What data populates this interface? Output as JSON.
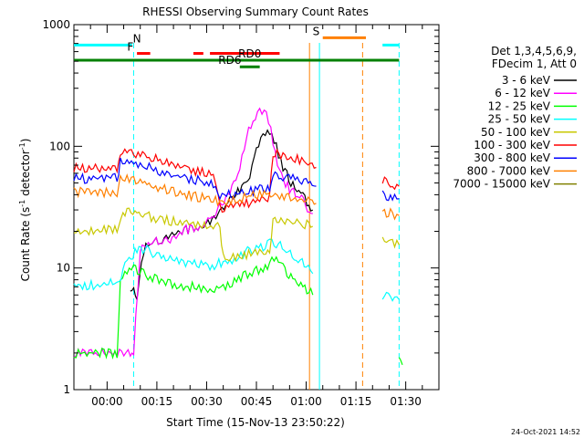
{
  "chart_data": {
    "type": "line",
    "title": "RHESSI Observing Summary Count Rates",
    "xlabel": "Start Time (15-Nov-13 23:50:22)",
    "ylabel_main": "Count Rate (s",
    "ylabel_sup": "-1",
    "ylabel_mid": " detector",
    "ylabel_sup2": "-1",
    "ylabel_end": ")",
    "y_scale": "log",
    "ylim": [
      1,
      1000
    ],
    "xlim_minutes": [
      -10,
      100
    ],
    "x_ticks": [
      {
        "t": 0,
        "label": "00:00"
      },
      {
        "t": 15,
        "label": "00:15"
      },
      {
        "t": 30,
        "label": "00:30"
      },
      {
        "t": 45,
        "label": "00:45"
      },
      {
        "t": 60,
        "label": "01:00"
      },
      {
        "t": 75,
        "label": "01:15"
      },
      {
        "t": 90,
        "label": "01:30"
      }
    ],
    "y_ticks": [
      {
        "v": 1,
        "label": "1"
      },
      {
        "v": 10,
        "label": "10"
      },
      {
        "v": 100,
        "label": "100"
      },
      {
        "v": 1000,
        "label": "1000"
      }
    ],
    "legend_header": [
      "Det 1,3,4,5,6,9,",
      "FDecim 1, Att 0"
    ],
    "series": [
      {
        "name": "3 - 6 keV",
        "color": "#000000",
        "points": [
          [
            7,
            6
          ],
          [
            8,
            7
          ],
          [
            9,
            6
          ],
          [
            11,
            14
          ],
          [
            13,
            17
          ],
          [
            16,
            16
          ],
          [
            19,
            18
          ],
          [
            22,
            20
          ],
          [
            25,
            21
          ],
          [
            28,
            22
          ],
          [
            31,
            24
          ],
          [
            34,
            30
          ],
          [
            37,
            35
          ],
          [
            40,
            45
          ],
          [
            43,
            55
          ],
          [
            45,
            90
          ],
          [
            47,
            120
          ],
          [
            49,
            130
          ],
          [
            51,
            100
          ],
          [
            53,
            65
          ],
          [
            56,
            48
          ],
          [
            59,
            38
          ],
          [
            62,
            30
          ]
        ]
      },
      {
        "name": "6 - 12 keV",
        "color": "#ff00ff",
        "points": [
          [
            -10,
            2
          ],
          [
            7,
            2
          ],
          [
            8,
            2
          ],
          [
            10,
            14
          ],
          [
            13,
            17
          ],
          [
            16,
            16
          ],
          [
            19,
            17
          ],
          [
            22,
            20
          ],
          [
            25,
            21
          ],
          [
            28,
            22
          ],
          [
            31,
            25
          ],
          [
            34,
            32
          ],
          [
            37,
            40
          ],
          [
            40,
            70
          ],
          [
            42,
            120
          ],
          [
            44,
            160
          ],
          [
            46,
            190
          ],
          [
            48,
            190
          ],
          [
            50,
            110
          ],
          [
            52,
            60
          ],
          [
            55,
            45
          ],
          [
            58,
            38
          ],
          [
            61,
            30
          ],
          [
            62,
            28
          ]
        ]
      },
      {
        "name": "12 - 25 keV",
        "color": "#00ff00",
        "points": [
          [
            -10,
            2
          ],
          [
            3,
            2
          ],
          [
            4,
            8
          ],
          [
            6,
            9
          ],
          [
            8,
            10
          ],
          [
            11,
            9
          ],
          [
            15,
            8
          ],
          [
            19,
            7.5
          ],
          [
            23,
            7
          ],
          [
            27,
            7
          ],
          [
            31,
            6.5
          ],
          [
            35,
            7
          ],
          [
            39,
            8
          ],
          [
            43,
            9
          ],
          [
            47,
            10
          ],
          [
            49,
            11
          ],
          [
            51,
            12
          ],
          [
            53,
            10
          ],
          [
            56,
            8
          ],
          [
            59,
            7
          ],
          [
            62,
            6
          ]
        ]
      },
      {
        "name": "25 - 50 keV",
        "color": "#00ffff",
        "points": [
          [
            -10,
            7
          ],
          [
            3,
            7.5
          ],
          [
            6,
            11
          ],
          [
            9,
            14
          ],
          [
            12,
            14
          ],
          [
            15,
            13
          ],
          [
            19,
            12
          ],
          [
            23,
            11
          ],
          [
            27,
            11
          ],
          [
            31,
            10.5
          ],
          [
            35,
            11
          ],
          [
            39,
            12
          ],
          [
            43,
            14
          ],
          [
            47,
            15
          ],
          [
            49,
            17
          ],
          [
            51,
            16
          ],
          [
            54,
            14
          ],
          [
            57,
            12
          ],
          [
            60,
            10.5
          ],
          [
            62,
            9
          ]
        ]
      },
      {
        "name": "50 - 100 keV",
        "color": "#c8c800",
        "points": [
          [
            -10,
            20
          ],
          [
            3,
            21
          ],
          [
            6,
            30
          ],
          [
            9,
            28
          ],
          [
            12,
            27
          ],
          [
            16,
            25
          ],
          [
            20,
            24
          ],
          [
            24,
            23
          ],
          [
            28,
            22
          ],
          [
            32,
            22
          ],
          [
            34,
            22
          ],
          [
            35,
            12
          ],
          [
            38,
            12
          ],
          [
            42,
            13
          ],
          [
            46,
            13
          ],
          [
            49,
            14
          ],
          [
            50,
            24
          ],
          [
            53,
            25
          ],
          [
            56,
            24
          ],
          [
            59,
            23
          ],
          [
            62,
            22
          ]
        ]
      },
      {
        "name": "100 - 300 keV",
        "color": "#ff0000",
        "points": [
          [
            -10,
            66
          ],
          [
            3,
            67
          ],
          [
            4,
            90
          ],
          [
            8,
            88
          ],
          [
            12,
            82
          ],
          [
            16,
            76
          ],
          [
            20,
            70
          ],
          [
            24,
            66
          ],
          [
            28,
            62
          ],
          [
            32,
            60
          ],
          [
            34,
            31
          ],
          [
            38,
            32
          ],
          [
            42,
            34
          ],
          [
            46,
            36
          ],
          [
            49,
            38
          ],
          [
            50,
            90
          ],
          [
            53,
            85
          ],
          [
            56,
            80
          ],
          [
            60,
            73
          ],
          [
            63,
            67
          ]
        ]
      },
      {
        "name": "300 - 800 keV",
        "color": "#0000ff",
        "points": [
          [
            -10,
            54
          ],
          [
            3,
            55
          ],
          [
            4,
            75
          ],
          [
            8,
            72
          ],
          [
            12,
            68
          ],
          [
            16,
            62
          ],
          [
            20,
            58
          ],
          [
            24,
            55
          ],
          [
            28,
            52
          ],
          [
            32,
            49
          ],
          [
            34,
            40
          ],
          [
            38,
            40
          ],
          [
            42,
            42
          ],
          [
            46,
            44
          ],
          [
            49,
            46
          ],
          [
            50,
            60
          ],
          [
            53,
            57
          ],
          [
            56,
            54
          ],
          [
            60,
            50
          ],
          [
            63,
            47
          ]
        ]
      },
      {
        "name": "800 - 7000 keV",
        "color": "#ff8000",
        "points": [
          [
            -10,
            42
          ],
          [
            3,
            42
          ],
          [
            4,
            56
          ],
          [
            8,
            54
          ],
          [
            12,
            50
          ],
          [
            16,
            46
          ],
          [
            20,
            43
          ],
          [
            24,
            40
          ],
          [
            28,
            38
          ],
          [
            32,
            36
          ],
          [
            36,
            35
          ],
          [
            40,
            37
          ],
          [
            44,
            39
          ],
          [
            48,
            41
          ],
          [
            52,
            40
          ],
          [
            56,
            38
          ],
          [
            60,
            36
          ],
          [
            63,
            34
          ]
        ]
      },
      {
        "name": "7000 - 15000 keV",
        "color": "#808000",
        "points": []
      }
    ],
    "series_after_gap": [
      {
        "color": "#ff0000",
        "points": [
          [
            83,
            52
          ],
          [
            86,
            49
          ],
          [
            88,
            47
          ]
        ]
      },
      {
        "color": "#0000ff",
        "points": [
          [
            83,
            41
          ],
          [
            86,
            38
          ],
          [
            88,
            37
          ]
        ]
      },
      {
        "color": "#ff8000",
        "points": [
          [
            83,
            29
          ],
          [
            86,
            28
          ],
          [
            88,
            27
          ]
        ]
      },
      {
        "color": "#c8c800",
        "points": [
          [
            83,
            17
          ],
          [
            86,
            16
          ],
          [
            88,
            15.5
          ]
        ]
      },
      {
        "color": "#00ffff",
        "points": [
          [
            83,
            6
          ],
          [
            86,
            5.8
          ],
          [
            88,
            5.5
          ]
        ]
      },
      {
        "color": "#00ff00",
        "points": [
          [
            -1,
            0
          ],
          [
            88,
            1.8
          ],
          [
            89,
            1.6
          ]
        ]
      }
    ],
    "flag_bars": [
      {
        "label": "N",
        "color": "#00ffff",
        "segments": [
          [
            -10,
            7.5
          ],
          [
            83,
            88
          ]
        ],
        "y": 680,
        "label_t": 9
      },
      {
        "label": "F",
        "color": "#ff0000",
        "segments": [
          [
            9,
            13
          ],
          [
            26,
            29
          ],
          [
            31,
            52
          ]
        ],
        "y": 580,
        "label_t": 7
      },
      {
        "label": "RD0",
        "color": "#008000",
        "segments": [
          [
            -10,
            88
          ]
        ],
        "y": 510,
        "label_t": 43
      },
      {
        "label": "RD6",
        "color": "#008000",
        "segments": [
          [
            40,
            46
          ]
        ],
        "y": 450,
        "label_t": 37
      },
      {
        "label": "S",
        "color": "#ff8000",
        "segments": [
          [
            65,
            78
          ]
        ],
        "y": 780,
        "label_t": 63
      }
    ],
    "saa_lines": [
      {
        "t": 8,
        "color": "#00ffff",
        "dash": true
      },
      {
        "t": 61,
        "color": "#ff8000",
        "dash": false
      },
      {
        "t": 64,
        "color": "#00ffff",
        "dash": false
      },
      {
        "t": 77,
        "color": "#ff8000",
        "dash": true
      },
      {
        "t": 88,
        "color": "#00ffff",
        "dash": true
      }
    ],
    "timestamp": "24-Oct-2021 14:52"
  }
}
